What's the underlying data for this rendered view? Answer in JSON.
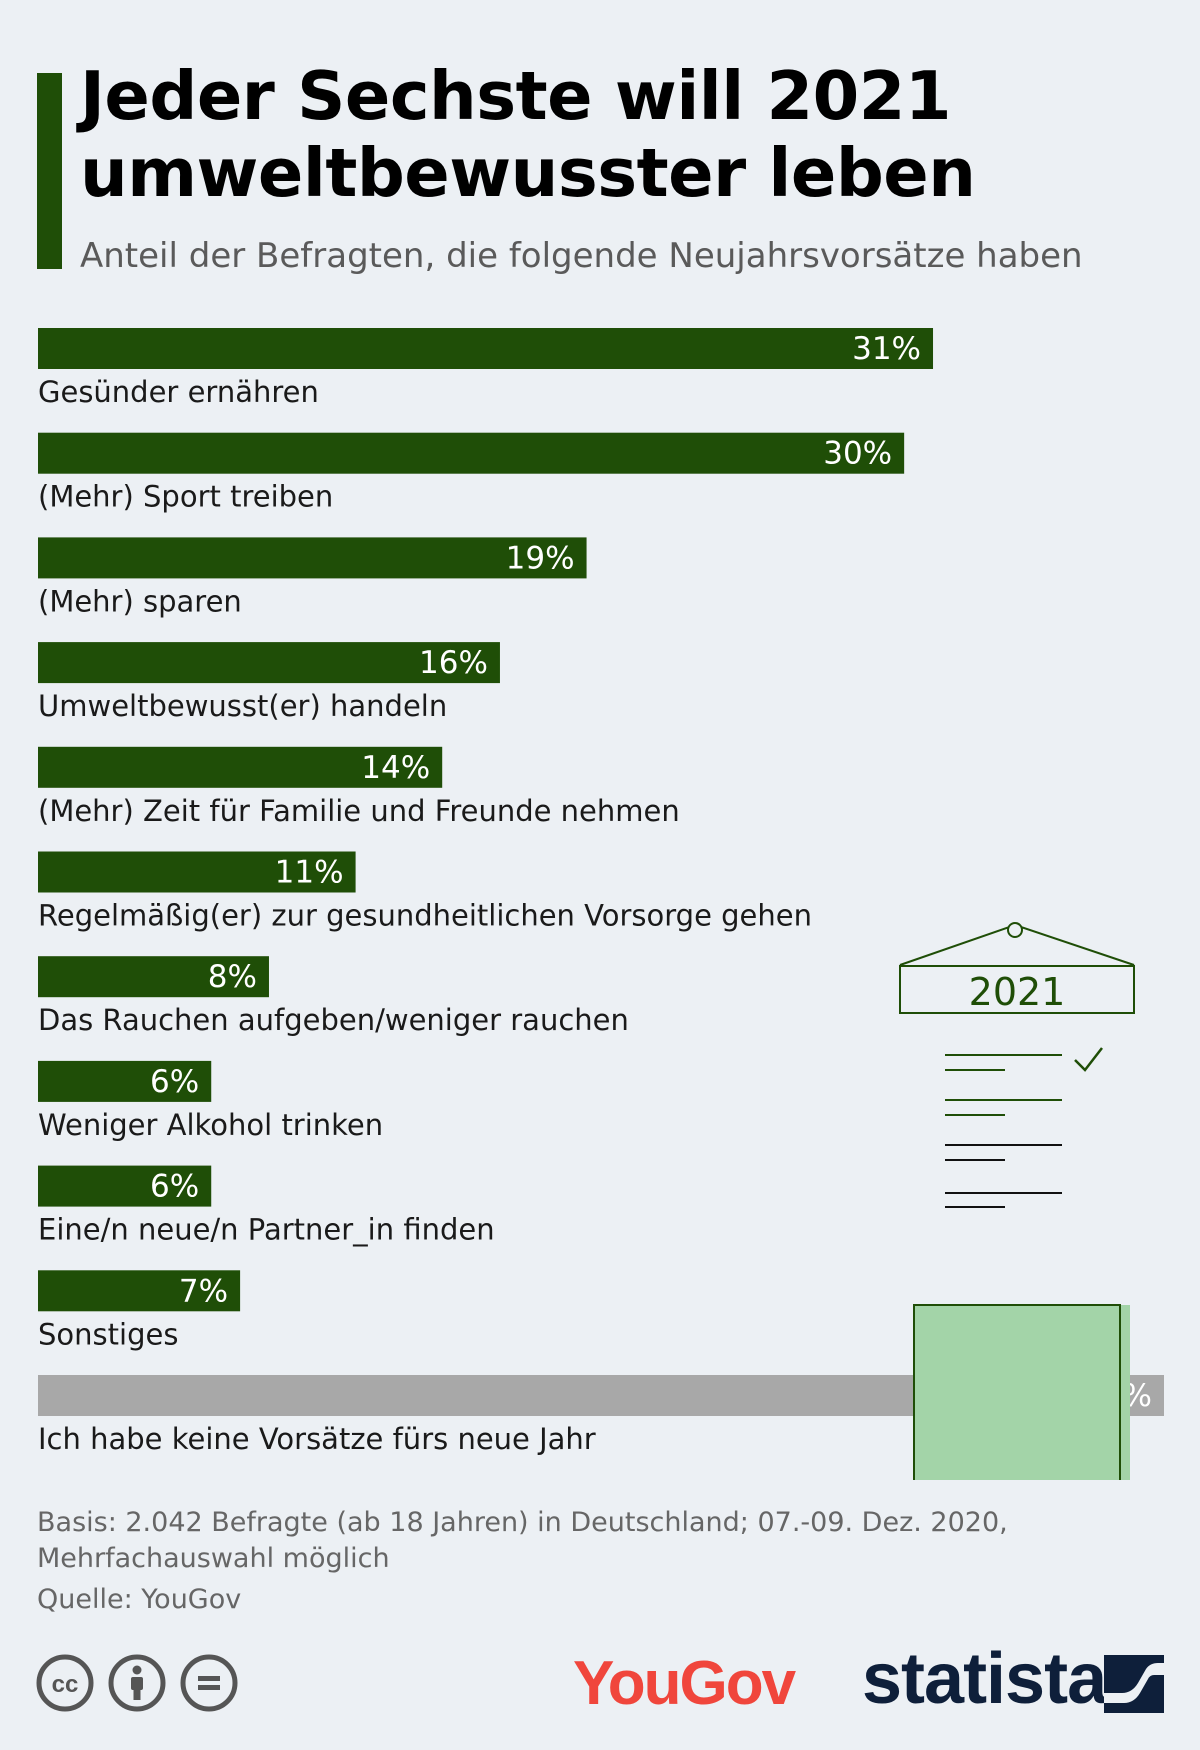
{
  "title": "Jeder Sechste will 2021 umweltbewusster leben",
  "subtitle": "Anteil der Befragten, die folgende Neujahrsvorsätze haben",
  "colors": {
    "accent": "#1f4e07",
    "neutral_bar": "#a8a8a8",
    "background": "#ecf0f4",
    "illustration_fill": "#a3d4a8",
    "illustration_stroke": "#1f4e07",
    "yougov": "#f0463c",
    "statista": "#0e1f3a"
  },
  "chart_data": {
    "type": "bar",
    "orientation": "horizontal",
    "unit": "%",
    "categories": [
      "Gesünder ernähren",
      "(Mehr) Sport treiben",
      "(Mehr) sparen",
      "Umweltbewusst(er) handeln",
      "(Mehr) Zeit für Familie und Freunde nehmen",
      "Regelmäßig(er) zur gesundheitlichen Vorsorge gehen",
      "Das Rauchen aufgeben/weniger rauchen",
      "Weniger Alkohol trinken",
      "Eine/n neue/n Partner_in finden",
      "Sonstiges",
      "Ich habe keine Vorsätze fürs neue Jahr"
    ],
    "values": [
      31,
      30,
      19,
      16,
      14,
      11,
      8,
      6,
      6,
      7,
      39
    ],
    "value_labels": [
      "31%",
      "30%",
      "19%",
      "16%",
      "14%",
      "11%",
      "8%",
      "6%",
      "6%",
      "7%",
      "39%"
    ],
    "highlight": [
      false,
      false,
      false,
      false,
      false,
      false,
      false,
      false,
      false,
      false,
      true
    ],
    "xlim": [
      0,
      39
    ],
    "grid": false,
    "legend": false
  },
  "illustration": {
    "icon": "resolution-list-icon",
    "year": "2021"
  },
  "notes": {
    "basis": "Basis: 2.042 Befragte (ab 18 Jahren) in Deutschland; 07.-09. Dez. 2020, Mehrfachauswahl möglich",
    "source": "Quelle: YouGov"
  },
  "logos": {
    "yougov": "YouGov",
    "statista": "statista",
    "license_icons": [
      "cc-icon",
      "by-icon",
      "nd-icon"
    ]
  }
}
